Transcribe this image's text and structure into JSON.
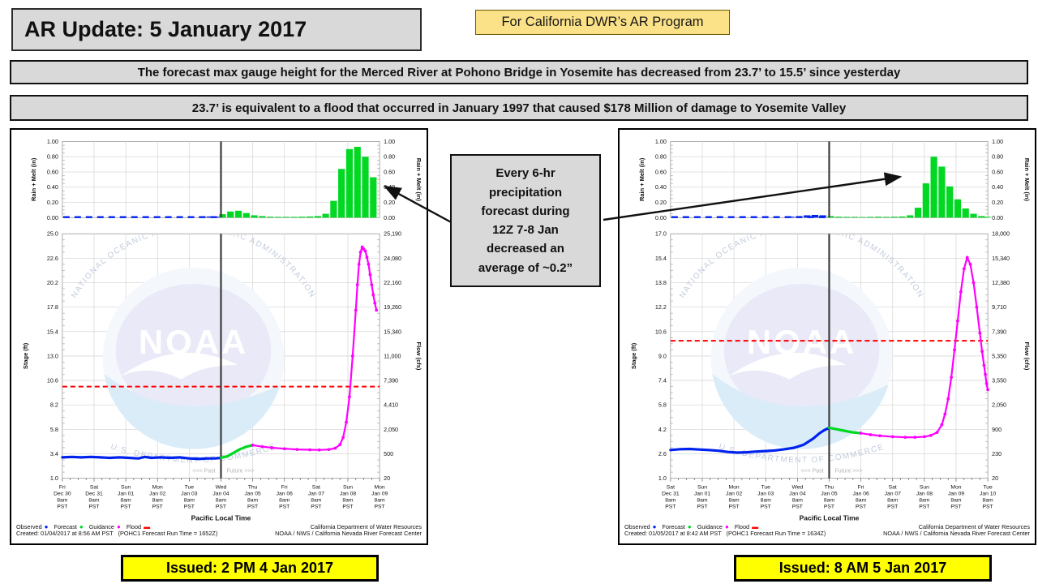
{
  "header": {
    "title": "AR Update: 5 January 2017",
    "tag": "For California DWR’s AR Program",
    "banner1": "The forecast max gauge height for the Merced River at Pohono Bridge in Yosemite has decreased from 23.7’ to 15.5’ since yesterday",
    "banner2": "23.7’ is equivalent to a flood that occurred in January 1997 that caused $178 Million of damage to Yosemite Valley"
  },
  "annotation": {
    "lines": [
      "Every 6-hr",
      "precipitation",
      "forecast during",
      "12Z 7-8 Jan",
      "decreased an",
      "average of ~0.2”"
    ]
  },
  "issued_left": "Issued: 2 PM 4 Jan 2017",
  "issued_right": "Issued: 8 AM 5 Jan 2017",
  "colors": {
    "observed": "#0022ee",
    "forecast": "#00d822",
    "guidance": "#ff00ff",
    "flood": "#ff0000",
    "gray_box": "#d9d9d9",
    "issued_yellow": "#ffff00",
    "tag_yellow": "#fbe187",
    "grid": "#d9d9d9",
    "now_line": "#3c3c3c"
  },
  "chart_data": [
    {
      "type": "line",
      "station": "POHC1 Merced River at Pohono Bridge",
      "precip": {
        "ylabel_left": "Rain + Melt (in)",
        "ylabel_right": "Rain + Melt (in)",
        "ymax": 1.0,
        "yticks": [
          "1.00",
          "0.80",
          "0.60",
          "0.40",
          "0.20",
          "0.00"
        ],
        "observed_bars": [
          [
            4.4,
            0.012
          ],
          [
            4.65,
            0.015
          ],
          [
            4.9,
            0.012
          ]
        ],
        "forecast_bars": [
          [
            5.05,
            0.045
          ],
          [
            5.3,
            0.08
          ],
          [
            5.55,
            0.09
          ],
          [
            5.8,
            0.06
          ],
          [
            6.05,
            0.03
          ],
          [
            6.3,
            0.02
          ],
          [
            6.55,
            0.012
          ],
          [
            6.8,
            0.01
          ],
          [
            7.05,
            0.01
          ],
          [
            7.3,
            0.01
          ],
          [
            7.55,
            0.012
          ],
          [
            7.8,
            0.015
          ],
          [
            8.05,
            0.02
          ],
          [
            8.3,
            0.05
          ],
          [
            8.55,
            0.22
          ],
          [
            8.8,
            0.64
          ],
          [
            9.05,
            0.9
          ],
          [
            9.3,
            0.93
          ],
          [
            9.55,
            0.8
          ],
          [
            9.8,
            0.53
          ]
        ]
      },
      "main": {
        "ylabel_left": "Stage (ft)",
        "ylabel_right": "Flow (cfs)",
        "stage_min": 1.0,
        "stage_max": 25.0,
        "stage_ticks": [
          "25.0",
          "22.6",
          "20.2",
          "17.8",
          "15.4",
          "13.0",
          "10.6",
          "8.2",
          "5.8",
          "3.4",
          "1.0"
        ],
        "flow_ticks": [
          "25,190",
          "24,080",
          "22,160",
          "19,260",
          "15,340",
          "11,000",
          "7,390",
          "4,410",
          "2,050",
          "500",
          "20"
        ],
        "flood_stage": 10.0,
        "now_day": 5,
        "past_label": "<<< Past",
        "future_label": "Future >>>",
        "series": [
          {
            "name": "observed",
            "color": "#0022ee",
            "width": 3.2,
            "markers": false,
            "points": [
              [
                0,
                3.05
              ],
              [
                0.3,
                3.1
              ],
              [
                0.6,
                3.05
              ],
              [
                0.9,
                3.1
              ],
              [
                1.2,
                3.05
              ],
              [
                1.5,
                3.0
              ],
              [
                1.8,
                3.05
              ],
              [
                2.1,
                3.0
              ],
              [
                2.4,
                2.95
              ],
              [
                2.6,
                3.1
              ],
              [
                2.8,
                3.0
              ],
              [
                3.1,
                3.05
              ],
              [
                3.4,
                3.0
              ],
              [
                3.7,
                3.05
              ],
              [
                4.0,
                2.95
              ],
              [
                4.3,
                2.9
              ],
              [
                4.6,
                2.95
              ],
              [
                4.8,
                2.95
              ],
              [
                5.0,
                3.0
              ]
            ]
          },
          {
            "name": "forecast",
            "color": "#00d822",
            "width": 3.2,
            "markers": false,
            "points": [
              [
                5.0,
                3.0
              ],
              [
                5.2,
                3.15
              ],
              [
                5.4,
                3.5
              ],
              [
                5.6,
                3.85
              ],
              [
                5.8,
                4.1
              ],
              [
                6.0,
                4.25
              ]
            ]
          },
          {
            "name": "guidance",
            "color": "#ff00ff",
            "width": 2.2,
            "markers": true,
            "points": [
              [
                6.0,
                4.25
              ],
              [
                6.3,
                4.1
              ],
              [
                6.6,
                4.0
              ],
              [
                7.0,
                3.9
              ],
              [
                7.4,
                3.83
              ],
              [
                7.8,
                3.8
              ],
              [
                8.1,
                3.78
              ],
              [
                8.4,
                3.82
              ],
              [
                8.6,
                3.95
              ],
              [
                8.75,
                4.3
              ],
              [
                8.85,
                5.0
              ],
              [
                8.95,
                6.5
              ],
              [
                9.05,
                9.0
              ],
              [
                9.15,
                13.0
              ],
              [
                9.25,
                17.5
              ],
              [
                9.3,
                20.0
              ],
              [
                9.35,
                22.0
              ],
              [
                9.4,
                23.2
              ],
              [
                9.45,
                23.7
              ],
              [
                9.5,
                23.5
              ],
              [
                9.55,
                23.3
              ],
              [
                9.6,
                22.7
              ],
              [
                9.65,
                22.0
              ],
              [
                9.7,
                21.0
              ],
              [
                9.75,
                20.0
              ],
              [
                9.8,
                19.0
              ],
              [
                9.85,
                18.2
              ],
              [
                9.9,
                17.5
              ]
            ]
          }
        ]
      },
      "xlabels": [
        [
          "Fri",
          "Dec 30",
          "8am",
          "PST"
        ],
        [
          "Sat",
          "Dec 31",
          "8am",
          "PST"
        ],
        [
          "Sun",
          "Jan 01",
          "8am",
          "PST"
        ],
        [
          "Mon",
          "Jan 02",
          "8am",
          "PST"
        ],
        [
          "Tue",
          "Jan 03",
          "8am",
          "PST"
        ],
        [
          "Wed",
          "Jan 04",
          "8am",
          "PST"
        ],
        [
          "Thu",
          "Jan 05",
          "8am",
          "PST"
        ],
        [
          "Fri",
          "Jan 06",
          "8am",
          "PST"
        ],
        [
          "Sat",
          "Jan 07",
          "8am",
          "PST"
        ],
        [
          "Sun",
          "Jan 08",
          "8am",
          "PST"
        ],
        [
          "Mon",
          "Jan 09",
          "8am",
          "PST"
        ]
      ],
      "xtitle": "Pacific Local Time",
      "legend": [
        [
          "Observed",
          "#0022ee",
          "dot"
        ],
        [
          "Forecast",
          "#00d822",
          "dot"
        ],
        [
          "Guidance",
          "#ff00ff",
          "dot"
        ],
        [
          "Flood",
          "#ff0000",
          "dash"
        ]
      ],
      "created": "Created: 01/04/2017 at 8:56 AM PST   (POHC1 Forecast Run Time = 1652Z)",
      "agency1": "California Department of Water Resources",
      "agency2": "NOAA / NWS / California Nevada River Forecast Center",
      "watermark": {
        "noaa": "NOAA",
        "arc_top": "NATIONAL OCEANIC AND ATMOSPHERIC ADMINISTRATION",
        "arc_bottom": "U.S. DEPARTMENT OF COMMERCE"
      }
    },
    {
      "type": "line",
      "station": "POHC1 Merced River at Pohono Bridge",
      "precip": {
        "ylabel_left": "Rain + Melt (in)",
        "ylabel_right": "Rain + Melt (in)",
        "ymax": 1.0,
        "yticks": [
          "1.00",
          "0.80",
          "0.60",
          "0.40",
          "0.20",
          "0.00"
        ],
        "observed_bars": [
          [
            3.8,
            0.012
          ],
          [
            4.05,
            0.02
          ],
          [
            4.3,
            0.03
          ],
          [
            4.55,
            0.035
          ],
          [
            4.8,
            0.03
          ]
        ],
        "forecast_bars": [
          [
            5.05,
            0.02
          ],
          [
            5.3,
            0.012
          ],
          [
            5.55,
            0.01
          ],
          [
            5.8,
            0.01
          ],
          [
            6.05,
            0.008
          ],
          [
            6.3,
            0.01
          ],
          [
            6.55,
            0.012
          ],
          [
            6.8,
            0.01
          ],
          [
            7.05,
            0.012
          ],
          [
            7.3,
            0.015
          ],
          [
            7.55,
            0.03
          ],
          [
            7.8,
            0.13
          ],
          [
            8.05,
            0.45
          ],
          [
            8.3,
            0.8
          ],
          [
            8.55,
            0.67
          ],
          [
            8.8,
            0.41
          ],
          [
            9.05,
            0.24
          ],
          [
            9.3,
            0.12
          ],
          [
            9.55,
            0.05
          ],
          [
            9.8,
            0.02
          ],
          [
            10.0,
            0.01
          ]
        ]
      },
      "main": {
        "ylabel_left": "Stage (ft)",
        "ylabel_right": "Flow (cfs)",
        "stage_min": 1.0,
        "stage_max": 17.0,
        "stage_ticks": [
          "17.0",
          "15.4",
          "13.8",
          "12.2",
          "10.6",
          "9.0",
          "7.4",
          "5.8",
          "4.2",
          "2.6",
          "1.0"
        ],
        "flow_ticks": [
          "18,000",
          "15,340",
          "12,380",
          "9,710",
          "7,390",
          "5,350",
          "3,550",
          "2,050",
          "900",
          "230",
          "20"
        ],
        "flood_stage": 10.0,
        "now_day": 5,
        "past_label": "<<< Past",
        "future_label": "Future >>>",
        "series": [
          {
            "name": "observed",
            "color": "#0022ee",
            "width": 3.2,
            "markers": false,
            "points": [
              [
                0,
                2.85
              ],
              [
                0.3,
                2.9
              ],
              [
                0.6,
                2.92
              ],
              [
                0.9,
                2.88
              ],
              [
                1.2,
                2.85
              ],
              [
                1.5,
                2.8
              ],
              [
                1.8,
                2.72
              ],
              [
                2.1,
                2.68
              ],
              [
                2.4,
                2.7
              ],
              [
                2.7,
                2.75
              ],
              [
                3.0,
                2.78
              ],
              [
                3.3,
                2.82
              ],
              [
                3.6,
                2.9
              ],
              [
                3.9,
                3.0
              ],
              [
                4.2,
                3.2
              ],
              [
                4.5,
                3.6
              ],
              [
                4.7,
                3.95
              ],
              [
                4.85,
                4.15
              ],
              [
                5.0,
                4.3
              ]
            ]
          },
          {
            "name": "forecast",
            "color": "#00d822",
            "width": 3.2,
            "markers": false,
            "points": [
              [
                5.0,
                4.3
              ],
              [
                5.25,
                4.2
              ],
              [
                5.5,
                4.1
              ],
              [
                5.75,
                4.0
              ],
              [
                6.0,
                3.95
              ]
            ]
          },
          {
            "name": "guidance",
            "color": "#ff00ff",
            "width": 2.2,
            "markers": true,
            "points": [
              [
                6.0,
                3.95
              ],
              [
                6.3,
                3.85
              ],
              [
                6.6,
                3.78
              ],
              [
                7.0,
                3.72
              ],
              [
                7.4,
                3.68
              ],
              [
                7.7,
                3.68
              ],
              [
                8.0,
                3.72
              ],
              [
                8.2,
                3.8
              ],
              [
                8.4,
                4.0
              ],
              [
                8.55,
                4.5
              ],
              [
                8.65,
                5.2
              ],
              [
                8.75,
                6.2
              ],
              [
                8.85,
                7.6
              ],
              [
                8.95,
                9.4
              ],
              [
                9.05,
                11.3
              ],
              [
                9.15,
                13.2
              ],
              [
                9.25,
                14.7
              ],
              [
                9.35,
                15.45
              ],
              [
                9.45,
                15.0
              ],
              [
                9.55,
                13.8
              ],
              [
                9.65,
                12.2
              ],
              [
                9.75,
                10.5
              ],
              [
                9.82,
                9.3
              ],
              [
                9.88,
                8.4
              ],
              [
                9.92,
                7.8
              ],
              [
                9.96,
                7.2
              ],
              [
                10.0,
                6.8
              ]
            ]
          }
        ]
      },
      "xlabels": [
        [
          "Sat",
          "Dec 31",
          "8am",
          "PST"
        ],
        [
          "Sun",
          "Jan 01",
          "8am",
          "PST"
        ],
        [
          "Mon",
          "Jan 02",
          "8am",
          "PST"
        ],
        [
          "Tue",
          "Jan 03",
          "8am",
          "PST"
        ],
        [
          "Wed",
          "Jan 04",
          "8am",
          "PST"
        ],
        [
          "Thu",
          "Jan 05",
          "8am",
          "PST"
        ],
        [
          "Fri",
          "Jan 06",
          "8am",
          "PST"
        ],
        [
          "Sat",
          "Jan 07",
          "8am",
          "PST"
        ],
        [
          "Sun",
          "Jan 08",
          "8am",
          "PST"
        ],
        [
          "Mon",
          "Jan 09",
          "8am",
          "PST"
        ],
        [
          "Tue",
          "Jan 10",
          "8am",
          "PST"
        ]
      ],
      "xtitle": "Pacific Local Time",
      "legend": [
        [
          "Observed",
          "#0022ee",
          "dot"
        ],
        [
          "Forecast",
          "#00d822",
          "dot"
        ],
        [
          "Guidance",
          "#ff00ff",
          "dot"
        ],
        [
          "Flood",
          "#ff0000",
          "dash"
        ]
      ],
      "created": "Created: 01/05/2017 at 8:42 AM PST   (POHC1 Forecast Run Time = 1634Z)",
      "agency1": "California Department of Water Resources",
      "agency2": "NOAA / NWS / California Nevada River Forecast Center",
      "watermark": {
        "noaa": "NOAA",
        "arc_top": "NATIONAL OCEANIC AND ATMOSPHERIC ADMINISTRATION",
        "arc_bottom": "U.S. DEPARTMENT OF COMMERCE"
      }
    }
  ]
}
